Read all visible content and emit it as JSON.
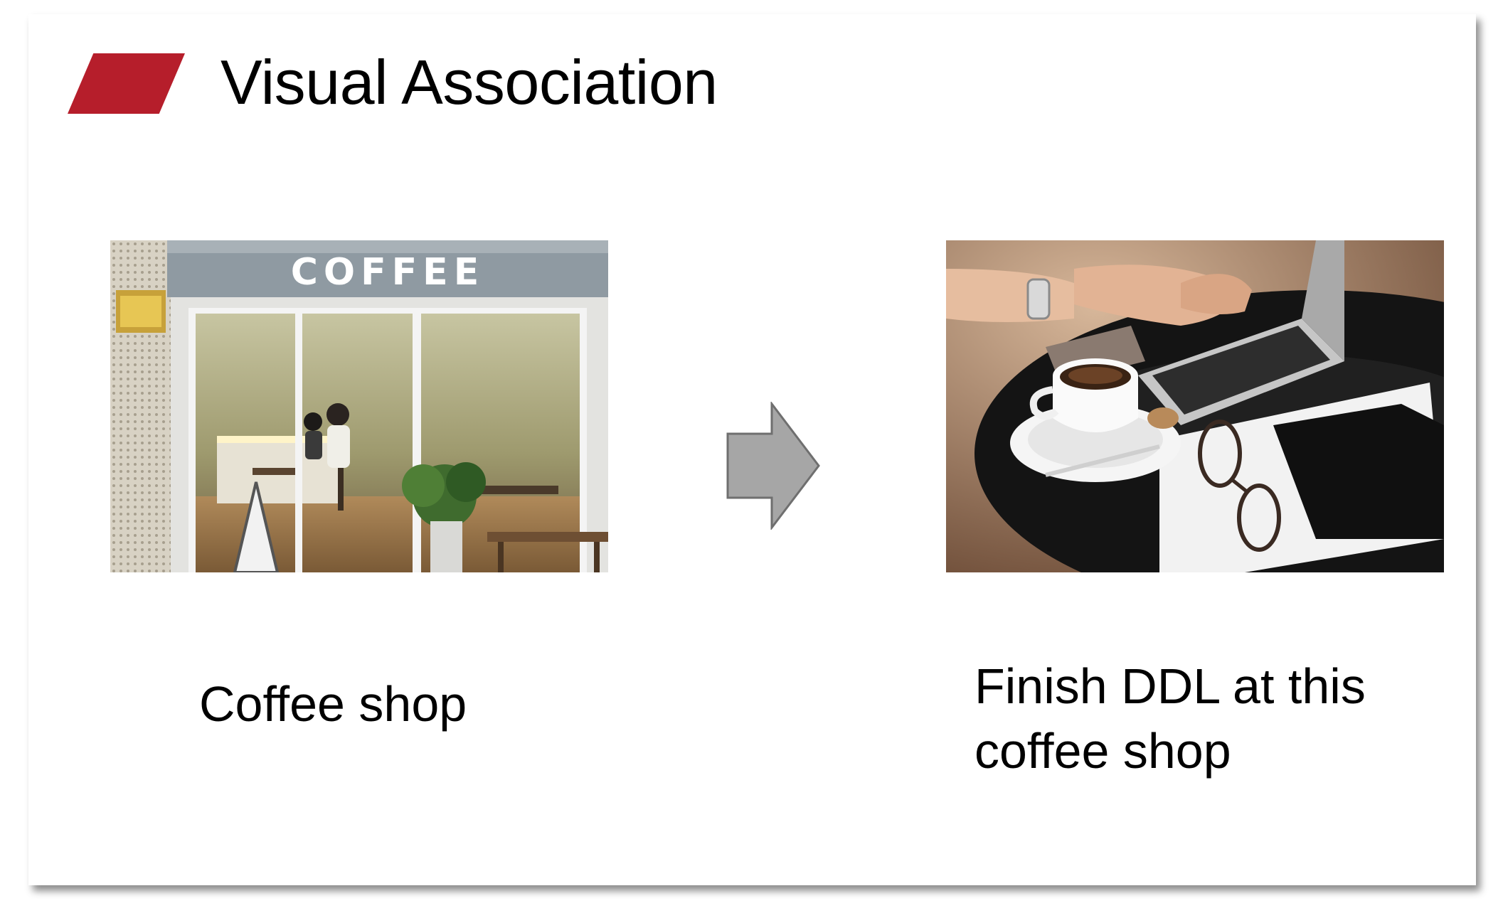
{
  "slide": {
    "title": "Visual Association",
    "accent_color": "#b61e2b"
  },
  "left": {
    "image_sign": "COFFEE",
    "caption": "Coffee shop"
  },
  "arrow": {
    "icon": "right-arrow-icon",
    "fill": "#a6a6a6"
  },
  "right": {
    "caption": "Finish DDL at this coffee shop"
  }
}
